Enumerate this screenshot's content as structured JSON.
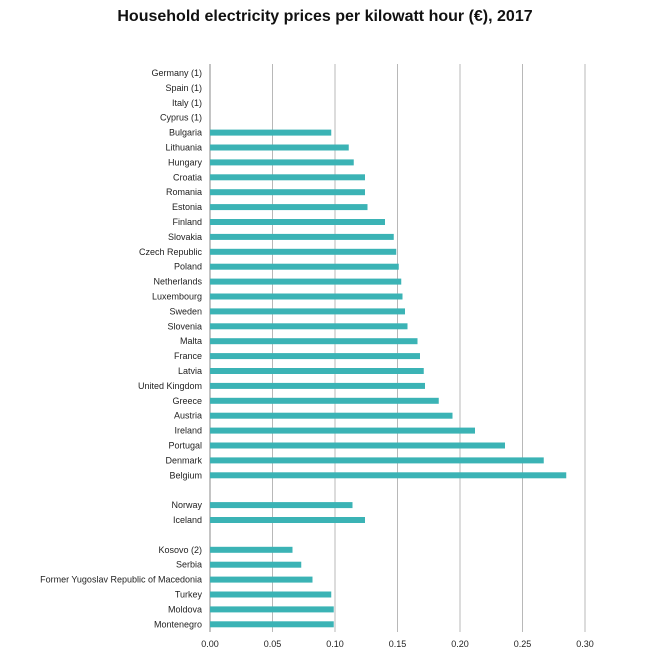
{
  "chart_data": {
    "type": "bar",
    "orientation": "horizontal",
    "title": "Household electricity prices per kilowatt hour (€), 2017",
    "xlabel": "",
    "ylabel": "",
    "xlim": [
      0,
      0.3
    ],
    "xticks": [
      "0.00",
      "0.05",
      "0.10",
      "0.15",
      "0.20",
      "0.25",
      "0.30"
    ],
    "grid": "vertical",
    "bar_color": "#3bb3b5",
    "categories": [
      "Germany (1)",
      "Spain (1)",
      "Italy (1)",
      "Cyprus (1)",
      "Bulgaria",
      "Lithuania",
      "Hungary",
      "Croatia",
      "Romania",
      "Estonia",
      "Finland",
      "Slovakia",
      "Czech Republic",
      "Poland",
      "Netherlands",
      "Luxembourg",
      "Sweden",
      "Slovenia",
      "Malta",
      "France",
      "Latvia",
      "United Kingdom",
      "Greece",
      "Austria",
      "Ireland",
      "Portugal",
      "Denmark",
      "Belgium",
      "",
      "Norway",
      "Iceland",
      "",
      "Kosovo (2)",
      "Serbia",
      "Former Yugoslav Republic of Macedonia",
      "Turkey",
      "Moldova",
      "Montenegro"
    ],
    "values": [
      null,
      null,
      null,
      null,
      0.097,
      0.111,
      0.115,
      0.124,
      0.124,
      0.126,
      0.14,
      0.147,
      0.149,
      0.151,
      0.153,
      0.154,
      0.156,
      0.158,
      0.166,
      0.168,
      0.171,
      0.172,
      0.183,
      0.194,
      0.212,
      0.236,
      0.267,
      0.285,
      null,
      0.114,
      0.124,
      null,
      0.066,
      0.073,
      0.082,
      0.097,
      0.099,
      0.099
    ]
  }
}
